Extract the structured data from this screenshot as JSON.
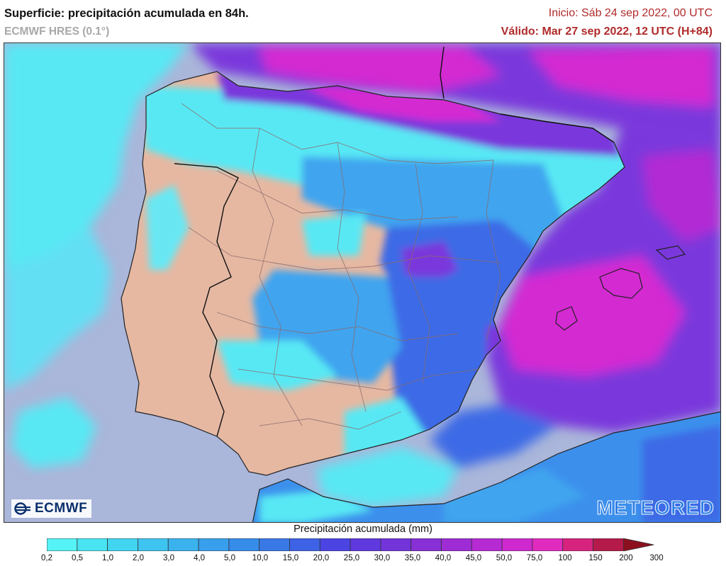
{
  "header": {
    "title": "Superficie: precipitación acumulada en 84h.",
    "model": "ECMWF HRES (0.1°)",
    "init": "Inicio: Sáb 24 sep 2022, 00 UTC",
    "valid": "Válido: Mar 27 sep 2022, 12 UTC (H+84)"
  },
  "logos": {
    "left": "ECMWF",
    "right": "METEORED"
  },
  "legend": {
    "title": "Precipitación acumulada (mm)",
    "ticks": [
      "0,2",
      "0,5",
      "1,0",
      "2,0",
      "3,0",
      "4,0",
      "5,0",
      "10,0",
      "15,0",
      "20,0",
      "25,0",
      "30,0",
      "35,0",
      "40,0",
      "45,0",
      "50,0",
      "75,0",
      "100",
      "150",
      "200",
      "300"
    ],
    "colors": [
      "#55f3f5",
      "#48e4f2",
      "#41d5f0",
      "#3ec4f0",
      "#3ab2ee",
      "#389fec",
      "#368ce9",
      "#3879e6",
      "#3d62e5",
      "#4b44e3",
      "#5f39dd",
      "#7334d9",
      "#8730d6",
      "#9d2cd4",
      "#b52ad2",
      "#cd29cf",
      "#e12bbf",
      "#d6247e",
      "#b41b4a",
      "#8c1020"
    ]
  },
  "map_colors": {
    "sea": "#aab6da",
    "land_dry": "#e6b8a2",
    "light": "#58e8f4",
    "medium": "#3fa4ef",
    "blue": "#3c6ae6",
    "violet": "#7a38dc",
    "magenta": "#d42ad2",
    "border": "#8a6a6a"
  }
}
